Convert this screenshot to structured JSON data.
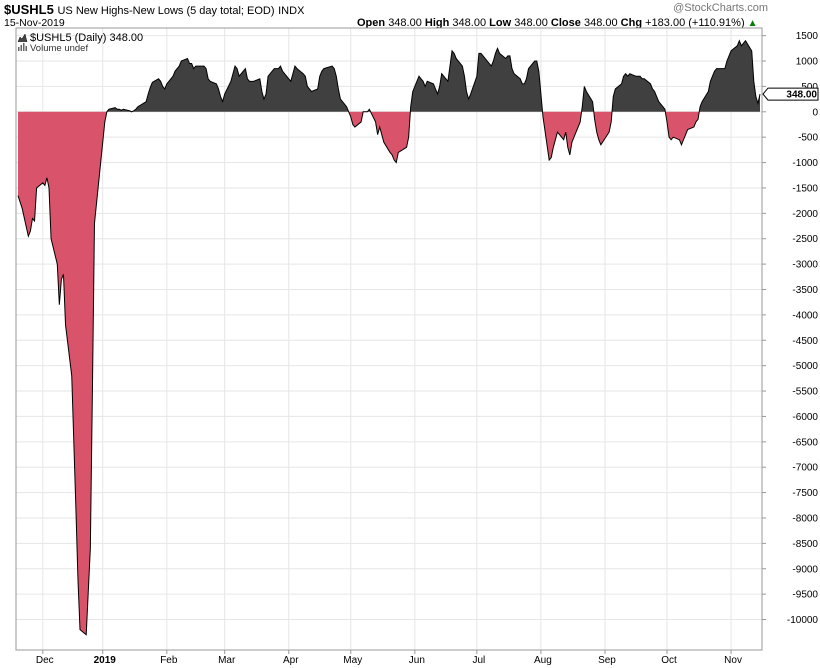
{
  "header": {
    "symbol": "$USHL5",
    "description": "US New Highs-New Lows (5 day total; EOD)",
    "exchange": "INDX",
    "date": "15-Nov-2019",
    "open_label": "Open",
    "open": "348.00",
    "high_label": "High",
    "high": "348.00",
    "low_label": "Low",
    "low": "348.00",
    "close_label": "Close",
    "close": "348.00",
    "chg_label": "Chg",
    "chg": "+183.00 (+110.91%)",
    "watermark": "@StockCharts.com"
  },
  "legend": {
    "series_label": "$USHL5 (Daily) 348.00",
    "volume_label": "Volume undef"
  },
  "last_value_tag": "348.00",
  "colors": {
    "positive_fill": "#404040",
    "negative_fill": "#d9546a",
    "line": "#000000",
    "grid": "#e6e6e6",
    "up_arrow": "#008000"
  },
  "chart_data": {
    "type": "area",
    "title": "US New Highs-New Lows (5 day total; EOD)",
    "series": [
      {
        "name": "$USHL5 (Daily)",
        "points": [
          [
            "2018-11-21",
            -1650
          ],
          [
            "2018-11-23",
            -1900
          ],
          [
            "2018-11-26",
            -2450
          ],
          [
            "2018-11-27",
            -2350
          ],
          [
            "2018-11-28",
            -2100
          ],
          [
            "2018-11-29",
            -2150
          ],
          [
            "2018-11-30",
            -1500
          ],
          [
            "2018-12-03",
            -1400
          ],
          [
            "2018-12-04",
            -1450
          ],
          [
            "2018-12-05",
            -1300
          ],
          [
            "2018-12-06",
            -1500
          ],
          [
            "2018-12-07",
            -2500
          ],
          [
            "2018-12-10",
            -3000
          ],
          [
            "2018-12-11",
            -3800
          ],
          [
            "2018-12-12",
            -3300
          ],
          [
            "2018-12-13",
            -3200
          ],
          [
            "2018-12-14",
            -4200
          ],
          [
            "2018-12-17",
            -5200
          ],
          [
            "2018-12-18",
            -6500
          ],
          [
            "2018-12-19",
            -7800
          ],
          [
            "2018-12-20",
            -9200
          ],
          [
            "2018-12-21",
            -10200
          ],
          [
            "2018-12-24",
            -10300
          ],
          [
            "2018-12-26",
            -8600
          ],
          [
            "2018-12-27",
            -5500
          ],
          [
            "2018-12-28",
            -2200
          ],
          [
            "2018-12-31",
            -1000
          ],
          [
            "2019-01-02",
            -200
          ],
          [
            "2019-01-03",
            0
          ],
          [
            "2019-01-04",
            50
          ],
          [
            "2019-01-07",
            80
          ],
          [
            "2019-01-08",
            50
          ],
          [
            "2019-01-09",
            50
          ],
          [
            "2019-01-10",
            30
          ],
          [
            "2019-01-11",
            50
          ],
          [
            "2019-01-14",
            20
          ],
          [
            "2019-01-15",
            0
          ],
          [
            "2019-01-16",
            20
          ],
          [
            "2019-01-17",
            50
          ],
          [
            "2019-01-18",
            100
          ],
          [
            "2019-01-22",
            200
          ],
          [
            "2019-01-23",
            350
          ],
          [
            "2019-01-24",
            480
          ],
          [
            "2019-01-25",
            580
          ],
          [
            "2019-01-28",
            650
          ],
          [
            "2019-01-29",
            600
          ],
          [
            "2019-01-30",
            500
          ],
          [
            "2019-01-31",
            450
          ],
          [
            "2019-02-01",
            550
          ],
          [
            "2019-02-04",
            700
          ],
          [
            "2019-02-05",
            800
          ],
          [
            "2019-02-06",
            850
          ],
          [
            "2019-02-07",
            900
          ],
          [
            "2019-02-08",
            1000
          ],
          [
            "2019-02-11",
            1050
          ],
          [
            "2019-02-12",
            950
          ],
          [
            "2019-02-13",
            950
          ],
          [
            "2019-02-14",
            850
          ],
          [
            "2019-02-15",
            900
          ],
          [
            "2019-02-19",
            900
          ],
          [
            "2019-02-20",
            850
          ],
          [
            "2019-02-21",
            650
          ],
          [
            "2019-02-22",
            600
          ],
          [
            "2019-02-25",
            550
          ],
          [
            "2019-02-26",
            450
          ],
          [
            "2019-02-27",
            300
          ],
          [
            "2019-02-28",
            200
          ],
          [
            "2019-03-01",
            350
          ],
          [
            "2019-03-04",
            600
          ],
          [
            "2019-03-05",
            750
          ],
          [
            "2019-03-06",
            900
          ],
          [
            "2019-03-07",
            850
          ],
          [
            "2019-03-08",
            700
          ],
          [
            "2019-03-11",
            850
          ],
          [
            "2019-03-12",
            650
          ],
          [
            "2019-03-13",
            600
          ],
          [
            "2019-03-14",
            600
          ],
          [
            "2019-03-15",
            600
          ],
          [
            "2019-03-18",
            650
          ],
          [
            "2019-03-19",
            400
          ],
          [
            "2019-03-20",
            250
          ],
          [
            "2019-03-21",
            350
          ],
          [
            "2019-03-22",
            700
          ],
          [
            "2019-03-25",
            850
          ],
          [
            "2019-03-26",
            850
          ],
          [
            "2019-03-27",
            850
          ],
          [
            "2019-03-28",
            900
          ],
          [
            "2019-03-29",
            800
          ],
          [
            "2019-04-01",
            650
          ],
          [
            "2019-04-02",
            600
          ],
          [
            "2019-04-03",
            750
          ],
          [
            "2019-04-04",
            900
          ],
          [
            "2019-04-05",
            850
          ],
          [
            "2019-04-08",
            750
          ],
          [
            "2019-04-09",
            700
          ],
          [
            "2019-04-10",
            500
          ],
          [
            "2019-04-11",
            450
          ],
          [
            "2019-04-12",
            400
          ],
          [
            "2019-04-15",
            450
          ],
          [
            "2019-04-16",
            700
          ],
          [
            "2019-04-17",
            800
          ],
          [
            "2019-04-18",
            850
          ],
          [
            "2019-04-22",
            900
          ],
          [
            "2019-04-23",
            850
          ],
          [
            "2019-04-24",
            700
          ],
          [
            "2019-04-25",
            450
          ],
          [
            "2019-04-26",
            250
          ],
          [
            "2019-04-29",
            100
          ],
          [
            "2019-04-30",
            0
          ],
          [
            "2019-05-01",
            -100
          ],
          [
            "2019-05-02",
            -250
          ],
          [
            "2019-05-03",
            -300
          ],
          [
            "2019-05-06",
            -200
          ],
          [
            "2019-05-07",
            0
          ],
          [
            "2019-05-08",
            0
          ],
          [
            "2019-05-09",
            0
          ],
          [
            "2019-05-10",
            50
          ],
          [
            "2019-05-13",
            -200
          ],
          [
            "2019-05-14",
            -450
          ],
          [
            "2019-05-15",
            -300
          ],
          [
            "2019-05-16",
            -450
          ],
          [
            "2019-05-17",
            -600
          ],
          [
            "2019-05-20",
            -800
          ],
          [
            "2019-05-21",
            -850
          ],
          [
            "2019-05-22",
            -950
          ],
          [
            "2019-05-23",
            -1000
          ],
          [
            "2019-05-24",
            -800
          ],
          [
            "2019-05-28",
            -700
          ],
          [
            "2019-05-29",
            -500
          ],
          [
            "2019-05-30",
            100
          ],
          [
            "2019-05-31",
            400
          ],
          [
            "2019-06-03",
            700
          ],
          [
            "2019-06-04",
            650
          ],
          [
            "2019-06-05",
            600
          ],
          [
            "2019-06-06",
            500
          ],
          [
            "2019-06-07",
            600
          ],
          [
            "2019-06-10",
            550
          ],
          [
            "2019-06-11",
            450
          ],
          [
            "2019-06-12",
            350
          ],
          [
            "2019-06-13",
            500
          ],
          [
            "2019-06-14",
            750
          ],
          [
            "2019-06-17",
            600
          ],
          [
            "2019-06-18",
            900
          ],
          [
            "2019-06-19",
            1200
          ],
          [
            "2019-06-20",
            1150
          ],
          [
            "2019-06-21",
            1050
          ],
          [
            "2019-06-24",
            900
          ],
          [
            "2019-06-25",
            700
          ],
          [
            "2019-06-26",
            400
          ],
          [
            "2019-06-27",
            250
          ],
          [
            "2019-06-28",
            350
          ],
          [
            "2019-07-01",
            700
          ],
          [
            "2019-07-02",
            1150
          ],
          [
            "2019-07-03",
            1150
          ],
          [
            "2019-07-05",
            1050
          ],
          [
            "2019-07-08",
            900
          ],
          [
            "2019-07-09",
            1000
          ],
          [
            "2019-07-10",
            1150
          ],
          [
            "2019-07-11",
            1250
          ],
          [
            "2019-07-12",
            1150
          ],
          [
            "2019-07-15",
            1050
          ],
          [
            "2019-07-16",
            1100
          ],
          [
            "2019-07-17",
            1100
          ],
          [
            "2019-07-18",
            850
          ],
          [
            "2019-07-19",
            750
          ],
          [
            "2019-07-22",
            650
          ],
          [
            "2019-07-23",
            550
          ],
          [
            "2019-07-24",
            550
          ],
          [
            "2019-07-25",
            650
          ],
          [
            "2019-07-26",
            850
          ],
          [
            "2019-07-29",
            1000
          ],
          [
            "2019-07-30",
            1000
          ],
          [
            "2019-07-31",
            800
          ],
          [
            "2019-08-01",
            350
          ],
          [
            "2019-08-02",
            -100
          ],
          [
            "2019-08-05",
            -950
          ],
          [
            "2019-08-06",
            -900
          ],
          [
            "2019-08-07",
            -700
          ],
          [
            "2019-08-08",
            -550
          ],
          [
            "2019-08-09",
            -400
          ],
          [
            "2019-08-12",
            -550
          ],
          [
            "2019-08-13",
            -400
          ],
          [
            "2019-08-14",
            -700
          ],
          [
            "2019-08-15",
            -850
          ],
          [
            "2019-08-16",
            -600
          ],
          [
            "2019-08-19",
            -300
          ],
          [
            "2019-08-20",
            -200
          ],
          [
            "2019-08-21",
            100
          ],
          [
            "2019-08-22",
            500
          ],
          [
            "2019-08-23",
            400
          ],
          [
            "2019-08-26",
            200
          ],
          [
            "2019-08-27",
            -150
          ],
          [
            "2019-08-28",
            -400
          ],
          [
            "2019-08-29",
            -550
          ],
          [
            "2019-08-30",
            -650
          ],
          [
            "2019-09-03",
            -400
          ],
          [
            "2019-09-04",
            -200
          ],
          [
            "2019-09-05",
            300
          ],
          [
            "2019-09-06",
            450
          ],
          [
            "2019-09-09",
            550
          ],
          [
            "2019-09-10",
            700
          ],
          [
            "2019-09-11",
            750
          ],
          [
            "2019-09-12",
            700
          ],
          [
            "2019-09-13",
            750
          ],
          [
            "2019-09-16",
            700
          ],
          [
            "2019-09-17",
            700
          ],
          [
            "2019-09-18",
            700
          ],
          [
            "2019-09-19",
            650
          ],
          [
            "2019-09-20",
            650
          ],
          [
            "2019-09-23",
            550
          ],
          [
            "2019-09-24",
            450
          ],
          [
            "2019-09-25",
            400
          ],
          [
            "2019-09-26",
            300
          ],
          [
            "2019-09-27",
            200
          ],
          [
            "2019-09-30",
            50
          ],
          [
            "2019-10-01",
            -200
          ],
          [
            "2019-10-02",
            -500
          ],
          [
            "2019-10-03",
            -550
          ],
          [
            "2019-10-04",
            -500
          ],
          [
            "2019-10-07",
            -550
          ],
          [
            "2019-10-08",
            -650
          ],
          [
            "2019-10-09",
            -550
          ],
          [
            "2019-10-10",
            -450
          ],
          [
            "2019-10-11",
            -350
          ],
          [
            "2019-10-14",
            -300
          ],
          [
            "2019-10-15",
            -200
          ],
          [
            "2019-10-16",
            -150
          ],
          [
            "2019-10-17",
            100
          ],
          [
            "2019-10-18",
            200
          ],
          [
            "2019-10-21",
            400
          ],
          [
            "2019-10-22",
            600
          ],
          [
            "2019-10-23",
            700
          ],
          [
            "2019-10-24",
            800
          ],
          [
            "2019-10-25",
            850
          ],
          [
            "2019-10-28",
            850
          ],
          [
            "2019-10-29",
            850
          ],
          [
            "2019-10-30",
            1000
          ],
          [
            "2019-10-31",
            1100
          ],
          [
            "2019-11-01",
            1200
          ],
          [
            "2019-11-04",
            1300
          ],
          [
            "2019-11-05",
            1400
          ],
          [
            "2019-11-06",
            1300
          ],
          [
            "2019-11-07",
            1350
          ],
          [
            "2019-11-08",
            1400
          ],
          [
            "2019-11-11",
            1200
          ],
          [
            "2019-11-12",
            600
          ],
          [
            "2019-11-13",
            300
          ],
          [
            "2019-11-14",
            165
          ],
          [
            "2019-11-15",
            348
          ]
        ]
      }
    ],
    "x_labels": [
      {
        "date": "2018-12-03",
        "label": "Dec",
        "bold": false
      },
      {
        "date": "2019-01-01",
        "label": "2019",
        "bold": true
      },
      {
        "date": "2019-02-01",
        "label": "Feb",
        "bold": false
      },
      {
        "date": "2019-03-01",
        "label": "Mar",
        "bold": false
      },
      {
        "date": "2019-04-01",
        "label": "Apr",
        "bold": false
      },
      {
        "date": "2019-05-01",
        "label": "May",
        "bold": false
      },
      {
        "date": "2019-06-01",
        "label": "Jun",
        "bold": false
      },
      {
        "date": "2019-07-01",
        "label": "Jul",
        "bold": false
      },
      {
        "date": "2019-08-01",
        "label": "Aug",
        "bold": false
      },
      {
        "date": "2019-09-01",
        "label": "Sep",
        "bold": false
      },
      {
        "date": "2019-10-01",
        "label": "Oct",
        "bold": false
      },
      {
        "date": "2019-11-01",
        "label": "Nov",
        "bold": false
      }
    ],
    "x_range": [
      "2018-11-21",
      "2019-11-15"
    ],
    "y_ticks": [
      1500,
      1000,
      500,
      0,
      -500,
      -1000,
      -1500,
      -2000,
      -2500,
      -3000,
      -3500,
      -4000,
      -4500,
      -5000,
      -5500,
      -6000,
      -6500,
      -7000,
      -7500,
      -8000,
      -8500,
      -9000,
      -9500,
      -10000
    ],
    "ylim": [
      -10600,
      1650
    ],
    "grid": true,
    "y_axis_side": "right"
  }
}
